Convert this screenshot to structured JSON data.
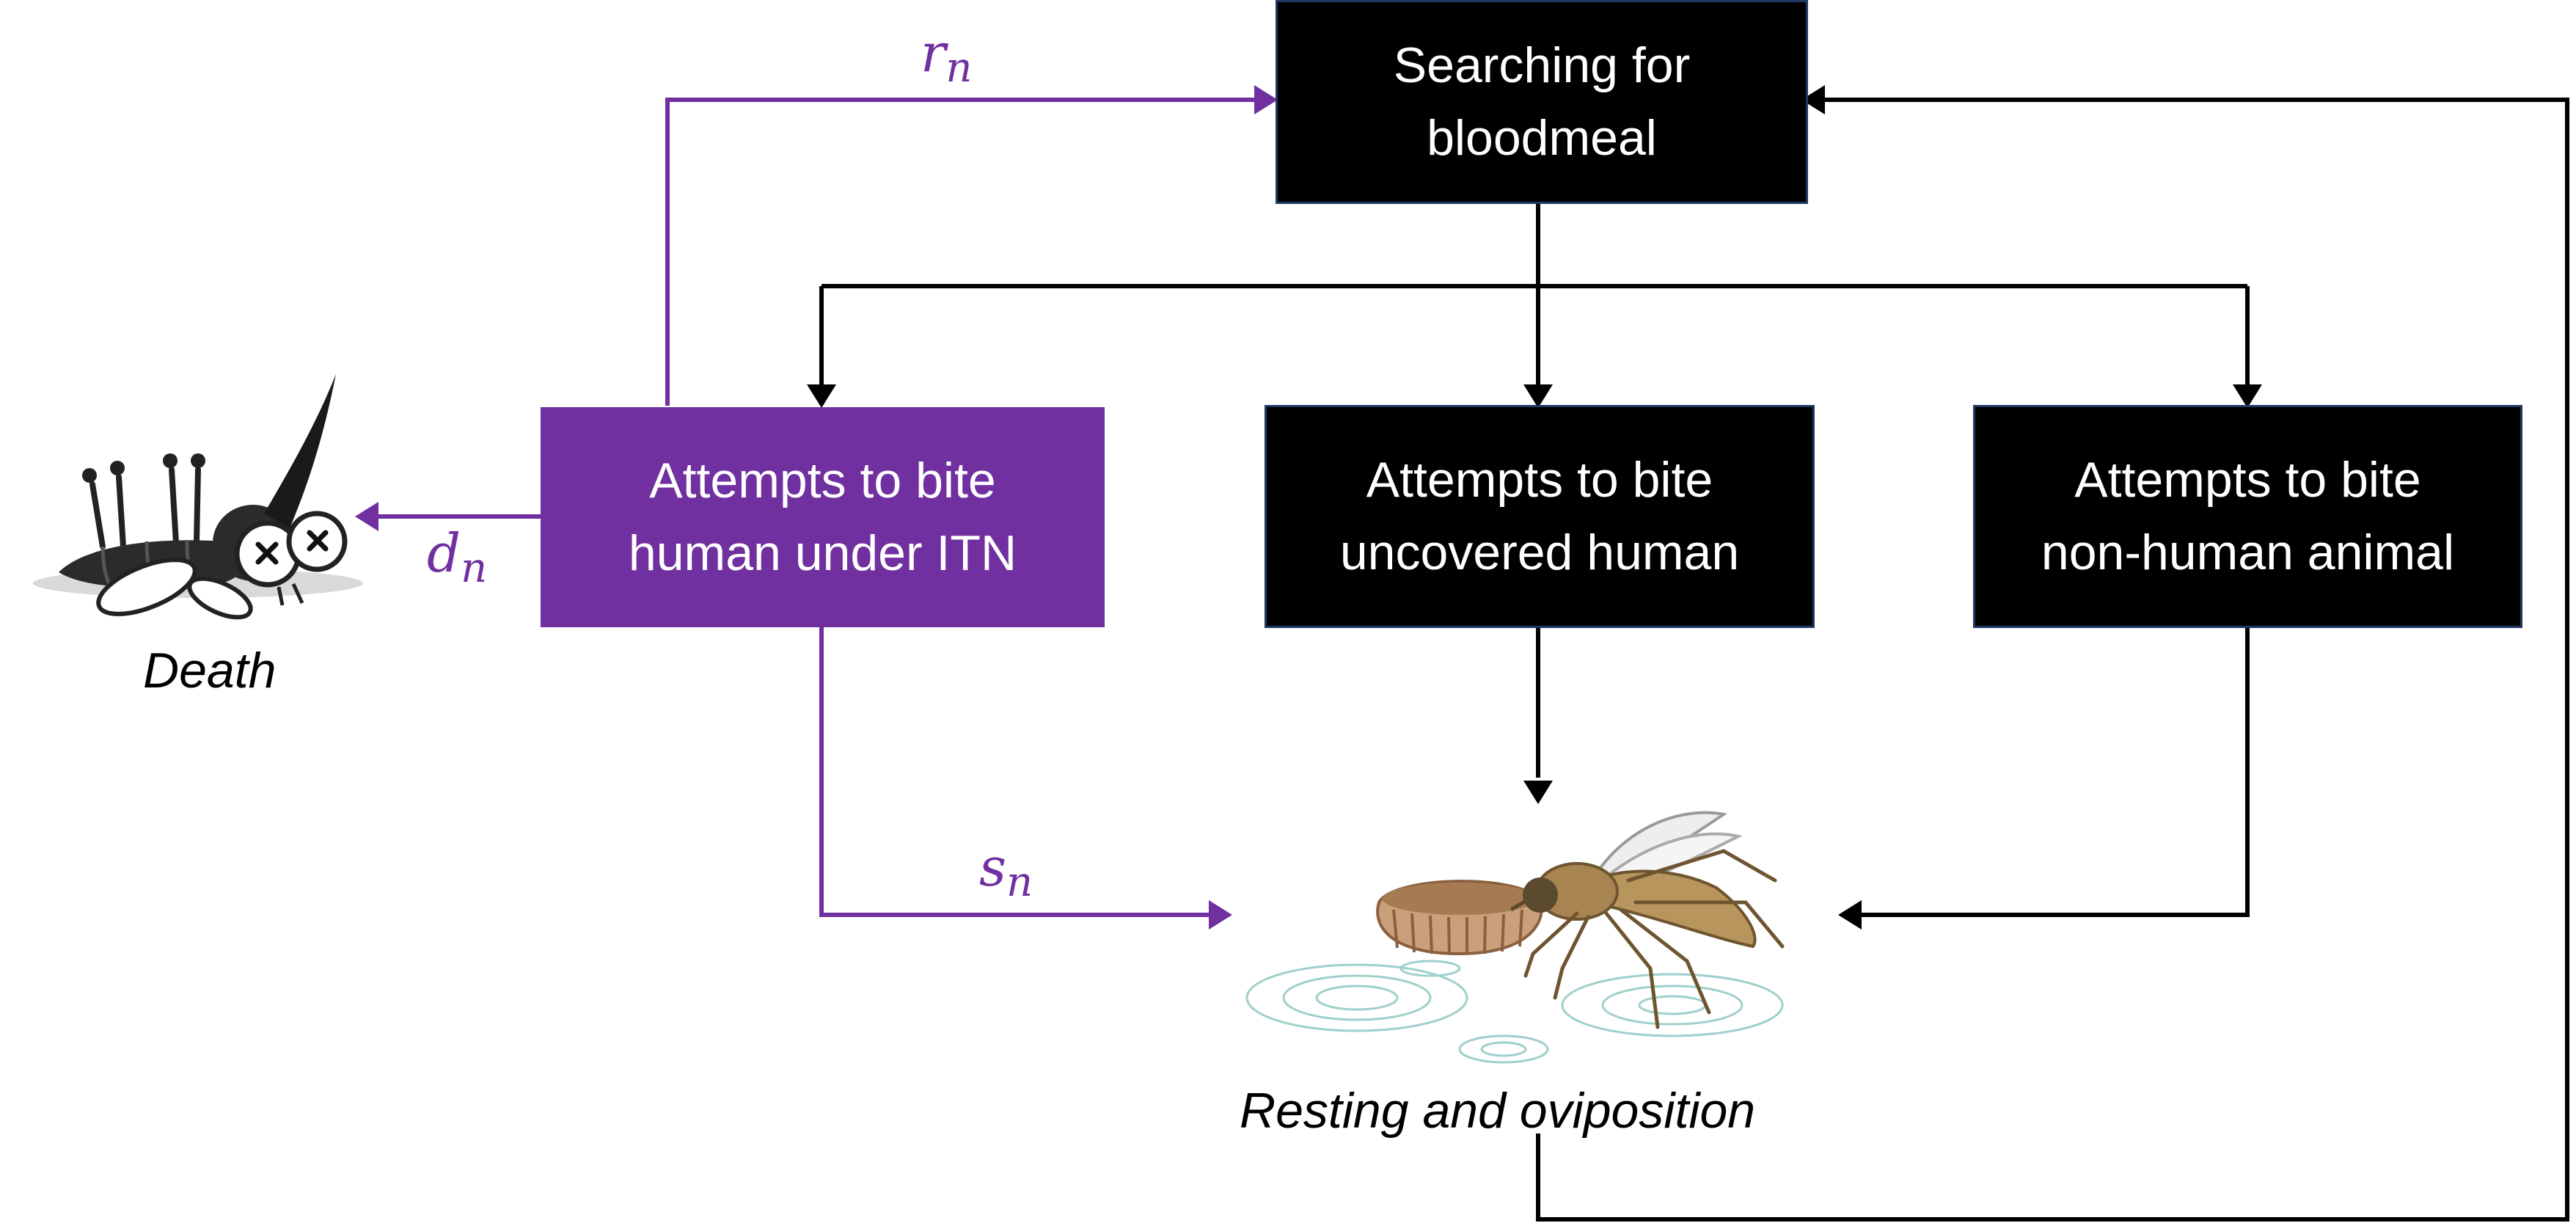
{
  "boxes": {
    "searching": "Searching for\nbloodmeal",
    "itn": "Attempts to bite\nhuman under ITN",
    "uncovered": "Attempts to bite\nuncovered human",
    "nonhuman": "Attempts to bite\nnon-human animal"
  },
  "states": {
    "death": "Death",
    "resting": "Resting and oviposition"
  },
  "rates": {
    "r": {
      "base": "r",
      "sub": "n"
    },
    "d": {
      "base": "d",
      "sub": "n"
    },
    "s": {
      "base": "s",
      "sub": "n"
    }
  },
  "colors": {
    "purple": "#7030a0",
    "black": "#000000",
    "box_border": "#1f3864"
  },
  "icons": {
    "dead_mosquito": "dead-mosquito-illustration",
    "mosquito_oviposition": "mosquito-laying-eggs-illustration"
  }
}
